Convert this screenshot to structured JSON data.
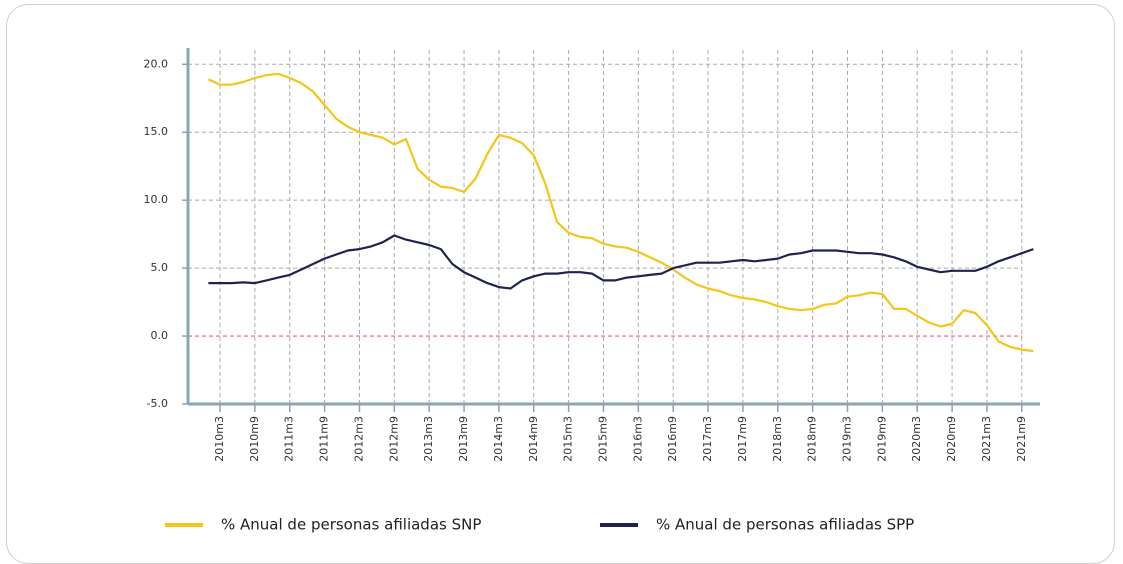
{
  "chart_data": {
    "type": "line",
    "categories": [
      null,
      "2010m3",
      null,
      null,
      "2010m9",
      null,
      null,
      "2011m3",
      null,
      null,
      "2011m9",
      null,
      null,
      "2012m3",
      null,
      null,
      "2012m9",
      null,
      null,
      "2013m3",
      null,
      null,
      "2013m9",
      null,
      null,
      "2014m3",
      null,
      null,
      "2014m9",
      null,
      null,
      "2015m3",
      null,
      null,
      "2015m9",
      null,
      null,
      "2016m3",
      null,
      null,
      "2016m9",
      null,
      null,
      "2017m3",
      null,
      null,
      "2017m9",
      null,
      null,
      "2018m3",
      null,
      null,
      "2018m9",
      null,
      null,
      "2019m3",
      null,
      null,
      "2019m9",
      null,
      null,
      "2020m3",
      null,
      null,
      "2020m9",
      null,
      null,
      "2021m3",
      null,
      null,
      "2021m9",
      null
    ],
    "series": [
      {
        "name": "% Anual de personas afiliadas SNP",
        "color": "#f5c518",
        "values": [
          18.9,
          18.5,
          18.5,
          18.7,
          19.0,
          19.2,
          19.3,
          19.0,
          18.6,
          18.0,
          17.0,
          16.0,
          15.4,
          15.0,
          14.8,
          14.6,
          14.1,
          14.5,
          12.3,
          11.5,
          11.0,
          10.9,
          10.6,
          11.6,
          13.4,
          14.8,
          14.6,
          14.2,
          13.3,
          11.2,
          8.4,
          7.6,
          7.3,
          7.2,
          6.8,
          6.6,
          6.5,
          6.2,
          5.8,
          5.4,
          4.9,
          4.3,
          3.8,
          3.5,
          3.3,
          3.0,
          2.8,
          2.7,
          2.5,
          2.2,
          2.0,
          1.9,
          2.0,
          2.3,
          2.4,
          2.9,
          3.0,
          3.2,
          3.1,
          2.0,
          2.0,
          1.5,
          1.0,
          0.7,
          0.9,
          1.9,
          1.7,
          0.8,
          -0.4,
          -0.8,
          -1.0,
          -1.1
        ]
      },
      {
        "name": "% Anual de personas afiliadas SPP",
        "color": "#1f2350",
        "values": [
          3.9,
          3.9,
          3.9,
          3.95,
          3.9,
          4.1,
          4.3,
          4.5,
          4.9,
          5.3,
          5.7,
          6.0,
          6.3,
          6.4,
          6.6,
          6.9,
          7.4,
          7.1,
          6.9,
          6.7,
          6.4,
          5.3,
          4.7,
          4.3,
          3.9,
          3.6,
          3.5,
          4.1,
          4.4,
          4.6,
          4.6,
          4.7,
          4.7,
          4.6,
          4.1,
          4.1,
          4.3,
          4.4,
          4.5,
          4.6,
          5.0,
          5.2,
          5.4,
          5.4,
          5.4,
          5.5,
          5.6,
          5.5,
          5.6,
          5.7,
          6.0,
          6.1,
          6.3,
          6.3,
          6.3,
          6.2,
          6.1,
          6.1,
          6.0,
          5.8,
          5.5,
          5.1,
          4.9,
          4.7,
          4.8,
          4.8,
          4.8,
          5.1,
          5.5,
          5.8,
          6.1,
          6.4
        ]
      }
    ],
    "ylim": [
      -5,
      21.2
    ],
    "yticks": [
      {
        "value": -5,
        "label": "-5.0"
      },
      {
        "value": 0,
        "label": "0.0"
      },
      {
        "value": 5,
        "label": "5.0"
      },
      {
        "value": 10,
        "label": "10.0"
      },
      {
        "value": 15,
        "label": "15.0"
      },
      {
        "value": 20,
        "label": "20.0"
      }
    ],
    "grid": true,
    "reference_line": {
      "value": 0,
      "color": "#e0607e"
    },
    "legend": "bottom"
  }
}
